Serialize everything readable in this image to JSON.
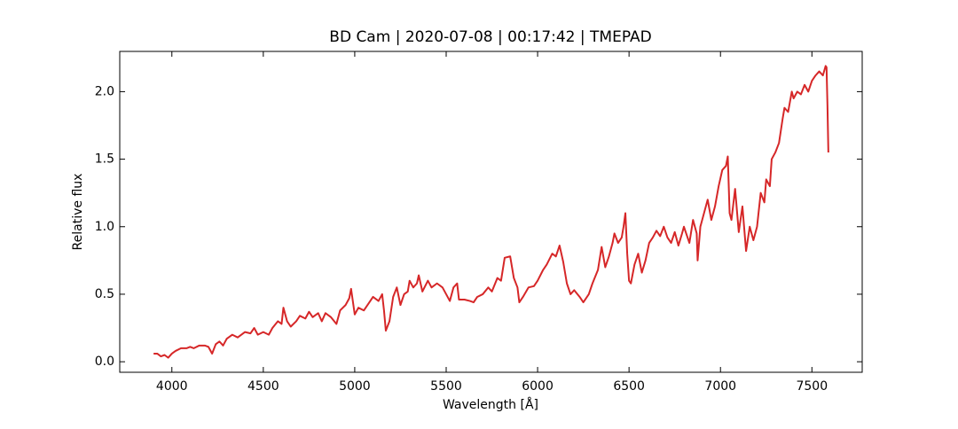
{
  "chart_data": {
    "type": "line",
    "title": "BD Cam | 2020-07-08 | 00:17:42 | TMEPAD",
    "x_label": "Wavelength [Å]",
    "y_label": "Relative flux",
    "xlim": [
      3715,
      7775
    ],
    "ylim": [
      -0.078,
      2.298
    ],
    "xticks": [
      4000,
      4500,
      5000,
      5500,
      6000,
      6500,
      7000,
      7500
    ],
    "yticks": [
      {
        "value": 0,
        "label": "0.0"
      },
      0.5,
      {
        "value": 1,
        "label": "1.0"
      },
      1.5,
      {
        "value": 2,
        "label": "2.0"
      }
    ],
    "grid": false,
    "x": [
      3900,
      3920,
      3940,
      3960,
      3980,
      4000,
      4020,
      4050,
      4080,
      4100,
      4120,
      4150,
      4180,
      4200,
      4220,
      4240,
      4260,
      4280,
      4300,
      4330,
      4360,
      4400,
      4430,
      4450,
      4470,
      4500,
      4530,
      4550,
      4580,
      4600,
      4610,
      4630,
      4650,
      4680,
      4700,
      4730,
      4750,
      4770,
      4800,
      4820,
      4840,
      4870,
      4900,
      4920,
      4950,
      4970,
      4980,
      5000,
      5020,
      5050,
      5080,
      5100,
      5130,
      5150,
      5160,
      5170,
      5190,
      5210,
      5230,
      5250,
      5270,
      5290,
      5300,
      5320,
      5340,
      5350,
      5370,
      5400,
      5420,
      5450,
      5480,
      5500,
      5520,
      5540,
      5560,
      5570,
      5600,
      5630,
      5650,
      5670,
      5700,
      5730,
      5750,
      5780,
      5800,
      5820,
      5850,
      5870,
      5890,
      5900,
      5920,
      5950,
      5980,
      6000,
      6030,
      6050,
      6080,
      6100,
      6120,
      6140,
      6160,
      6180,
      6200,
      6230,
      6250,
      6280,
      6300,
      6330,
      6350,
      6370,
      6390,
      6410,
      6420,
      6440,
      6460,
      6470,
      6480,
      6490,
      6500,
      6510,
      6530,
      6550,
      6570,
      6590,
      6610,
      6630,
      6650,
      6670,
      6690,
      6710,
      6730,
      6750,
      6770,
      6790,
      6800,
      6830,
      6850,
      6870,
      6875,
      6890,
      6910,
      6930,
      6950,
      6970,
      6990,
      7010,
      7030,
      7040,
      7050,
      7060,
      7080,
      7100,
      7120,
      7140,
      7160,
      7180,
      7200,
      7220,
      7240,
      7250,
      7270,
      7280,
      7300,
      7320,
      7340,
      7350,
      7370,
      7390,
      7400,
      7420,
      7440,
      7460,
      7480,
      7500,
      7520,
      7540,
      7560,
      7575,
      7580,
      7585,
      7590
    ],
    "series": [
      {
        "color": "#d62728",
        "values": [
          0.06,
          0.06,
          0.04,
          0.05,
          0.03,
          0.06,
          0.08,
          0.1,
          0.1,
          0.11,
          0.1,
          0.12,
          0.12,
          0.11,
          0.06,
          0.13,
          0.15,
          0.12,
          0.17,
          0.2,
          0.18,
          0.22,
          0.21,
          0.25,
          0.2,
          0.22,
          0.2,
          0.25,
          0.3,
          0.28,
          0.4,
          0.3,
          0.26,
          0.3,
          0.34,
          0.32,
          0.37,
          0.33,
          0.36,
          0.3,
          0.36,
          0.33,
          0.28,
          0.38,
          0.42,
          0.47,
          0.54,
          0.35,
          0.4,
          0.38,
          0.44,
          0.48,
          0.45,
          0.5,
          0.38,
          0.23,
          0.3,
          0.48,
          0.55,
          0.42,
          0.5,
          0.52,
          0.6,
          0.55,
          0.58,
          0.64,
          0.52,
          0.6,
          0.55,
          0.58,
          0.55,
          0.5,
          0.45,
          0.55,
          0.58,
          0.46,
          0.46,
          0.45,
          0.44,
          0.48,
          0.5,
          0.55,
          0.52,
          0.62,
          0.6,
          0.77,
          0.78,
          0.62,
          0.55,
          0.44,
          0.48,
          0.55,
          0.56,
          0.6,
          0.68,
          0.72,
          0.8,
          0.78,
          0.86,
          0.74,
          0.58,
          0.5,
          0.53,
          0.48,
          0.44,
          0.5,
          0.58,
          0.68,
          0.85,
          0.7,
          0.78,
          0.88,
          0.95,
          0.88,
          0.92,
          1.0,
          1.1,
          0.8,
          0.6,
          0.58,
          0.72,
          0.8,
          0.66,
          0.75,
          0.88,
          0.92,
          0.97,
          0.93,
          1.0,
          0.92,
          0.88,
          0.96,
          0.86,
          0.95,
          1.0,
          0.88,
          1.05,
          0.95,
          0.75,
          1.0,
          1.1,
          1.2,
          1.05,
          1.15,
          1.3,
          1.42,
          1.45,
          1.52,
          1.1,
          1.05,
          1.28,
          0.96,
          1.15,
          0.82,
          1.0,
          0.9,
          1.0,
          1.25,
          1.18,
          1.35,
          1.3,
          1.5,
          1.55,
          1.62,
          1.8,
          1.88,
          1.85,
          2.0,
          1.95,
          2.0,
          1.98,
          2.05,
          2.0,
          2.08,
          2.12,
          2.15,
          2.12,
          2.19,
          2.18,
          1.9,
          1.55
        ]
      }
    ]
  }
}
